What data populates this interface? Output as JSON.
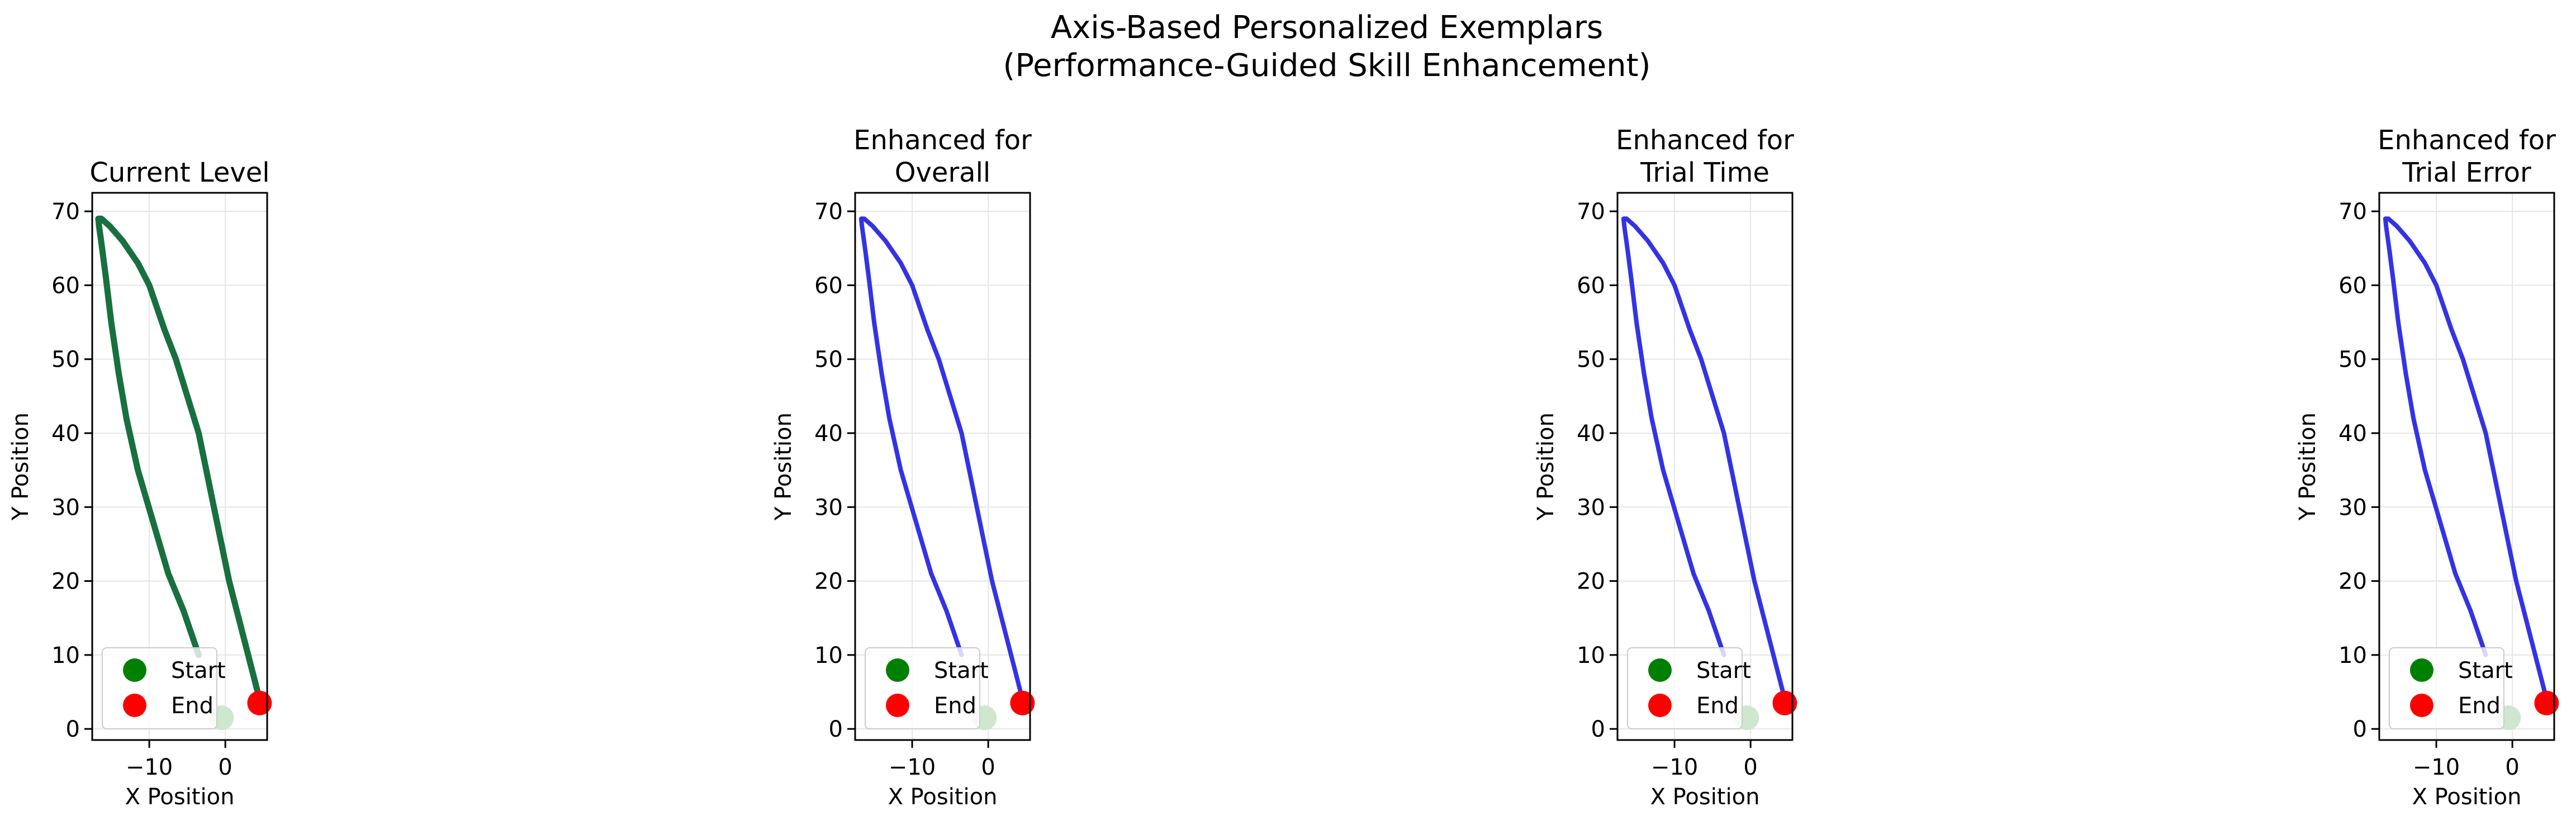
{
  "figure": {
    "title_line1": "Axis-Based Personalized Exemplars",
    "title_line2": "(Performance-Guided Skill Enhancement)"
  },
  "colors": {
    "current": "#18703f",
    "enhanced": "#3333e6",
    "start": "#008000",
    "end": "#ff0000",
    "start_marker_faded": "#cfe6cf",
    "grid": "#e6e6e6"
  },
  "chart_data": [
    {
      "type": "line",
      "title_lines": [
        "Current Level"
      ],
      "xlabel": "X Position",
      "ylabel": "Y Position",
      "xlim": [
        -17.5,
        5.5
      ],
      "ylim": [
        -1.5,
        72.5
      ],
      "xticks": [
        -10,
        0
      ],
      "xtick_labels": [
        "−10",
        "0"
      ],
      "yticks": [
        0,
        10,
        20,
        30,
        40,
        50,
        60,
        70
      ],
      "grid": true,
      "legend": {
        "placement": "lower-left",
        "entries": [
          "Start",
          "End"
        ]
      },
      "series": [
        {
          "color_key": "current",
          "x": [
            -3.5,
            -5.5,
            -7.5,
            -9.5,
            -11.5,
            -13,
            -14,
            -15,
            -15.7,
            -16.2,
            -16.6,
            -16.7,
            -16.3,
            -15.2,
            -13.5,
            -11.5,
            -10,
            -9,
            -8,
            -6.5,
            -5,
            -3.5,
            -2.5,
            -1.5,
            -0.5,
            0.5,
            1.5,
            2.5,
            3.5,
            4.5
          ],
          "y": [
            10,
            16,
            21,
            28,
            35,
            42,
            48,
            55,
            61,
            65,
            68,
            69,
            69,
            68,
            66,
            63,
            60,
            57,
            54,
            50,
            45,
            40,
            35,
            30,
            25,
            20,
            16,
            12,
            8,
            4
          ]
        }
      ],
      "start_point": {
        "x": -0.5,
        "y": 1.5
      },
      "end_point": {
        "x": 4.5,
        "y": 3.5
      }
    },
    {
      "type": "line",
      "title_lines": [
        "Enhanced for",
        "Overall"
      ],
      "xlabel": "X Position",
      "ylabel": "Y Position",
      "xlim": [
        -17.5,
        5.5
      ],
      "ylim": [
        -1.5,
        72.5
      ],
      "xticks": [
        -10,
        0
      ],
      "xtick_labels": [
        "−10",
        "0"
      ],
      "yticks": [
        0,
        10,
        20,
        30,
        40,
        50,
        60,
        70
      ],
      "grid": true,
      "legend": {
        "placement": "lower-left",
        "entries": [
          "Start",
          "End"
        ]
      },
      "series": [
        {
          "color_key": "enhanced",
          "x": [
            -3.5,
            -5.5,
            -7.5,
            -9.5,
            -11.5,
            -13,
            -14,
            -15,
            -15.7,
            -16.2,
            -16.6,
            -16.7,
            -16.3,
            -15.2,
            -13.5,
            -11.5,
            -10,
            -9,
            -8,
            -6.5,
            -5,
            -3.5,
            -2.5,
            -1.5,
            -0.5,
            0.5,
            1.5,
            2.5,
            3.5,
            4.5
          ],
          "y": [
            10,
            16,
            21,
            28,
            35,
            42,
            48,
            55,
            61,
            65,
            68,
            69,
            69,
            68,
            66,
            63,
            60,
            57,
            54,
            50,
            45,
            40,
            35,
            30,
            25,
            20,
            16,
            12,
            8,
            4
          ]
        }
      ],
      "start_point": {
        "x": -0.5,
        "y": 1.5
      },
      "end_point": {
        "x": 4.5,
        "y": 3.5
      }
    },
    {
      "type": "line",
      "title_lines": [
        "Enhanced for",
        "Trial Time"
      ],
      "xlabel": "X Position",
      "ylabel": "Y Position",
      "xlim": [
        -17.5,
        5.5
      ],
      "ylim": [
        -1.5,
        72.5
      ],
      "xticks": [
        -10,
        0
      ],
      "xtick_labels": [
        "−10",
        "0"
      ],
      "yticks": [
        0,
        10,
        20,
        30,
        40,
        50,
        60,
        70
      ],
      "grid": true,
      "legend": {
        "placement": "lower-left",
        "entries": [
          "Start",
          "End"
        ]
      },
      "series": [
        {
          "color_key": "enhanced",
          "x": [
            -3.5,
            -5.5,
            -7.5,
            -9.5,
            -11.5,
            -13,
            -14,
            -15,
            -15.7,
            -16.2,
            -16.6,
            -16.7,
            -16.3,
            -15.2,
            -13.5,
            -11.5,
            -10,
            -9,
            -8,
            -6.5,
            -5,
            -3.5,
            -2.5,
            -1.5,
            -0.5,
            0.5,
            1.5,
            2.5,
            3.5,
            4.5
          ],
          "y": [
            10,
            16,
            21,
            28,
            35,
            42,
            48,
            55,
            61,
            65,
            68,
            69,
            69,
            68,
            66,
            63,
            60,
            57,
            54,
            50,
            45,
            40,
            35,
            30,
            25,
            20,
            16,
            12,
            8,
            4
          ]
        }
      ],
      "start_point": {
        "x": -0.5,
        "y": 1.5
      },
      "end_point": {
        "x": 4.5,
        "y": 3.5
      }
    },
    {
      "type": "line",
      "title_lines": [
        "Enhanced for",
        "Trial Error"
      ],
      "xlabel": "X Position",
      "ylabel": "Y Position",
      "xlim": [
        -17.5,
        5.5
      ],
      "ylim": [
        -1.5,
        72.5
      ],
      "xticks": [
        -10,
        0
      ],
      "xtick_labels": [
        "−10",
        "0"
      ],
      "yticks": [
        0,
        10,
        20,
        30,
        40,
        50,
        60,
        70
      ],
      "grid": true,
      "legend": {
        "placement": "lower-left",
        "entries": [
          "Start",
          "End"
        ]
      },
      "series": [
        {
          "color_key": "enhanced",
          "x": [
            -3.5,
            -5.5,
            -7.5,
            -9.5,
            -11.5,
            -13,
            -14,
            -15,
            -15.7,
            -16.2,
            -16.6,
            -16.7,
            -16.3,
            -15.2,
            -13.5,
            -11.5,
            -10,
            -9,
            -8,
            -6.5,
            -5,
            -3.5,
            -2.5,
            -1.5,
            -0.5,
            0.5,
            1.5,
            2.5,
            3.5,
            4.5
          ],
          "y": [
            10,
            16,
            21,
            28,
            35,
            42,
            48,
            55,
            61,
            65,
            68,
            69,
            69,
            68,
            66,
            63,
            60,
            57,
            54,
            50,
            45,
            40,
            35,
            30,
            25,
            20,
            16,
            12,
            8,
            4
          ]
        }
      ],
      "start_point": {
        "x": -0.5,
        "y": 1.5
      },
      "end_point": {
        "x": 4.5,
        "y": 3.5
      }
    }
  ]
}
